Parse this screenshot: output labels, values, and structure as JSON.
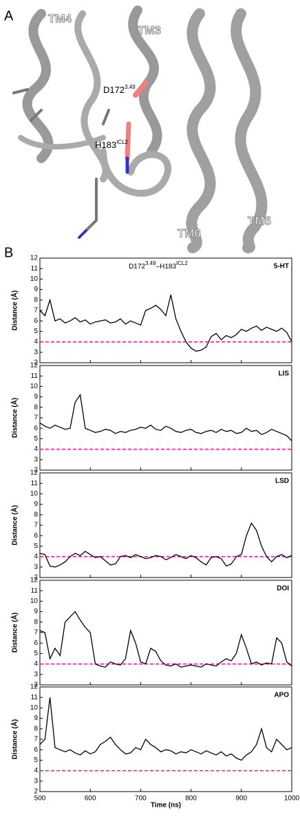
{
  "panel_a": {
    "label": "A",
    "labels": [
      "TM4",
      "TM3",
      "TM6",
      "TM5"
    ],
    "residues": [
      {
        "base": "D172",
        "sup": "3.49"
      },
      {
        "base": "H183",
        "sup": "ICL2"
      }
    ]
  },
  "panel_b_label": "B",
  "chart_data": [
    {
      "type": "line",
      "title_parts": [
        {
          "base": "D172",
          "sup": "3.49"
        },
        {
          "base": "–H183",
          "sup": "ICL2"
        }
      ],
      "label": "5-HT",
      "label_color": "#f7941d",
      "ylabel": "Distance (Å)",
      "x": [
        500,
        510,
        520,
        530,
        540,
        550,
        560,
        570,
        580,
        590,
        600,
        610,
        620,
        630,
        640,
        650,
        660,
        670,
        680,
        690,
        700,
        710,
        720,
        730,
        740,
        750,
        760,
        770,
        780,
        790,
        800,
        810,
        820,
        830,
        840,
        850,
        860,
        870,
        880,
        890,
        900,
        910,
        920,
        930,
        940,
        950,
        960,
        970,
        980,
        990,
        1000
      ],
      "series": [
        {
          "color": "#000000",
          "values": [
            7.0,
            6.5,
            8.0,
            6.0,
            6.2,
            5.8,
            6.0,
            6.3,
            5.9,
            6.1,
            5.7,
            5.9,
            6.0,
            6.1,
            5.8,
            5.9,
            6.2,
            5.7,
            6.0,
            5.8,
            5.6,
            7.0,
            7.2,
            7.5,
            7.1,
            6.5,
            8.5,
            6.2,
            5.0,
            4.0,
            3.4,
            3.1,
            3.2,
            3.5,
            4.5,
            4.8,
            4.2,
            4.6,
            4.4,
            4.7,
            5.2,
            5.0,
            5.3,
            5.5,
            5.1,
            5.4,
            5.2,
            5.0,
            5.3,
            4.9,
            4.0
          ]
        }
      ],
      "hline": 4,
      "hline_color": "#e0198c",
      "xlim": [
        500,
        1000
      ],
      "xticks": [
        500,
        600,
        700,
        800,
        900,
        1000
      ],
      "ylim": [
        2,
        12
      ],
      "yticks": [
        2,
        3,
        4,
        5,
        6,
        7,
        8,
        9,
        10,
        11,
        12
      ]
    },
    {
      "type": "line",
      "label": "LIS",
      "label_color": "#00a651",
      "ylabel": "Distance (Å)",
      "x": [
        500,
        510,
        520,
        530,
        540,
        550,
        560,
        570,
        580,
        590,
        600,
        610,
        620,
        630,
        640,
        650,
        660,
        670,
        680,
        690,
        700,
        710,
        720,
        730,
        740,
        750,
        760,
        770,
        780,
        790,
        800,
        810,
        820,
        830,
        840,
        850,
        860,
        870,
        880,
        890,
        900,
        910,
        920,
        930,
        940,
        950,
        960,
        970,
        980,
        990,
        1000
      ],
      "series": [
        {
          "color": "#000000",
          "values": [
            6.5,
            6.2,
            6.0,
            6.3,
            6.1,
            5.9,
            6.0,
            8.5,
            9.2,
            6.0,
            5.8,
            5.6,
            5.7,
            5.9,
            5.8,
            5.5,
            5.7,
            5.6,
            5.8,
            5.9,
            6.1,
            6.0,
            6.3,
            5.9,
            5.8,
            6.2,
            6.0,
            5.7,
            5.6,
            5.8,
            5.9,
            5.6,
            5.5,
            5.7,
            5.8,
            5.6,
            5.9,
            5.7,
            5.8,
            5.5,
            5.6,
            6.0,
            5.7,
            5.8,
            5.4,
            5.6,
            5.9,
            5.7,
            5.5,
            5.3,
            4.8
          ]
        }
      ],
      "hline": 4,
      "hline_color": "#e0198c",
      "xlim": [
        500,
        1000
      ],
      "xticks": [
        500,
        600,
        700,
        800,
        900,
        1000
      ],
      "ylim": [
        2,
        12
      ],
      "yticks": [
        2,
        3,
        4,
        5,
        6,
        7,
        8,
        9,
        10,
        11,
        12
      ]
    },
    {
      "type": "line",
      "label": "LSD",
      "label_color": "#00aeef",
      "ylabel": "Distance (Å)",
      "x": [
        500,
        510,
        520,
        530,
        540,
        550,
        560,
        570,
        580,
        590,
        600,
        610,
        620,
        630,
        640,
        650,
        660,
        670,
        680,
        690,
        700,
        710,
        720,
        730,
        740,
        750,
        760,
        770,
        780,
        790,
        800,
        810,
        820,
        830,
        840,
        850,
        860,
        870,
        880,
        890,
        900,
        910,
        920,
        930,
        940,
        950,
        960,
        970,
        980,
        990,
        1000
      ],
      "series": [
        {
          "color": "#000000",
          "values": [
            4.3,
            4.2,
            3.1,
            3.0,
            3.2,
            3.5,
            4.0,
            4.3,
            4.1,
            4.5,
            4.2,
            3.9,
            4.0,
            3.6,
            3.2,
            3.3,
            4.0,
            4.1,
            3.9,
            4.2,
            4.0,
            3.8,
            3.9,
            4.1,
            4.0,
            3.7,
            3.9,
            4.2,
            4.0,
            3.8,
            4.1,
            3.9,
            3.5,
            3.2,
            3.9,
            4.0,
            3.8,
            3.1,
            3.3,
            4.0,
            4.2,
            6.0,
            7.2,
            6.5,
            5.0,
            4.0,
            3.5,
            4.0,
            4.2,
            3.9,
            4.1
          ]
        }
      ],
      "hline": 4,
      "hline_color": "#e0198c",
      "xlim": [
        500,
        1000
      ],
      "xticks": [
        500,
        600,
        700,
        800,
        900,
        1000
      ],
      "ylim": [
        2,
        12
      ],
      "yticks": [
        2,
        3,
        4,
        5,
        6,
        7,
        8,
        9,
        10,
        11,
        12
      ]
    },
    {
      "type": "line",
      "label": "DOI",
      "label_color": "#ed1c24",
      "ylabel": "Distance (Å)",
      "x": [
        500,
        510,
        520,
        530,
        540,
        550,
        560,
        570,
        580,
        590,
        600,
        610,
        620,
        630,
        640,
        650,
        660,
        670,
        680,
        690,
        700,
        710,
        720,
        730,
        740,
        750,
        760,
        770,
        780,
        790,
        800,
        810,
        820,
        830,
        840,
        850,
        860,
        870,
        880,
        890,
        900,
        910,
        920,
        930,
        940,
        950,
        960,
        970,
        980,
        990,
        1000
      ],
      "series": [
        {
          "color": "#000000",
          "values": [
            7.2,
            7.0,
            4.5,
            5.5,
            4.8,
            8.0,
            8.5,
            9.0,
            8.2,
            7.5,
            7.0,
            4.0,
            3.8,
            3.7,
            4.2,
            4.0,
            3.9,
            4.5,
            7.2,
            6.0,
            4.2,
            4.0,
            5.5,
            5.2,
            4.3,
            3.9,
            3.8,
            4.0,
            3.7,
            3.8,
            3.9,
            3.8,
            3.7,
            4.0,
            3.9,
            3.8,
            4.2,
            4.5,
            4.3,
            5.0,
            6.8,
            5.5,
            4.0,
            4.2,
            3.9,
            4.1,
            4.0,
            6.5,
            6.0,
            4.2,
            3.8
          ]
        }
      ],
      "hline": 4,
      "hline_color": "#e0198c",
      "xlim": [
        500,
        1000
      ],
      "xticks": [
        500,
        600,
        700,
        800,
        900,
        1000
      ],
      "ylim": [
        2,
        12
      ],
      "yticks": [
        2,
        3,
        4,
        5,
        6,
        7,
        8,
        9,
        10,
        11,
        12
      ]
    },
    {
      "type": "line",
      "label": "APO",
      "label_color": "#808080",
      "ylabel": "Distance (Å)",
      "xlabel": "Time (ns)",
      "show_xtick_labels": true,
      "x": [
        500,
        510,
        520,
        530,
        540,
        550,
        560,
        570,
        580,
        590,
        600,
        610,
        620,
        630,
        640,
        650,
        660,
        670,
        680,
        690,
        700,
        710,
        720,
        730,
        740,
        750,
        760,
        770,
        780,
        790,
        800,
        810,
        820,
        830,
        840,
        850,
        860,
        870,
        880,
        890,
        900,
        910,
        920,
        930,
        940,
        950,
        960,
        970,
        980,
        990,
        1000
      ],
      "series": [
        {
          "color": "#000000",
          "values": [
            6.5,
            7.0,
            11.0,
            6.2,
            6.0,
            5.8,
            6.0,
            5.7,
            5.5,
            5.9,
            5.6,
            5.8,
            6.5,
            6.8,
            7.2,
            6.5,
            6.0,
            5.6,
            5.7,
            6.2,
            6.0,
            7.0,
            6.5,
            6.2,
            5.8,
            6.0,
            5.9,
            5.6,
            5.8,
            5.7,
            6.0,
            5.8,
            5.6,
            5.9,
            5.7,
            5.5,
            5.8,
            5.4,
            5.6,
            5.2,
            5.0,
            5.5,
            5.8,
            6.5,
            8.0,
            6.2,
            5.8,
            7.0,
            6.5,
            6.0,
            6.2
          ]
        }
      ],
      "hline": 4,
      "hline_color": "#e0198c",
      "xlim": [
        500,
        1000
      ],
      "xticks": [
        500,
        600,
        700,
        800,
        900,
        1000
      ],
      "ylim": [
        2,
        12
      ],
      "yticks": [
        2,
        3,
        4,
        5,
        6,
        7,
        8,
        9,
        10,
        11,
        12
      ]
    }
  ]
}
